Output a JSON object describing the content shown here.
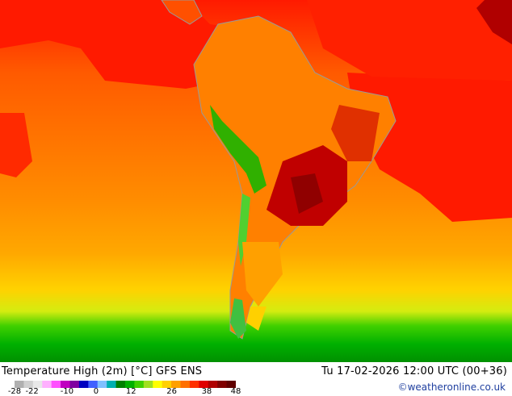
{
  "map": {
    "title": "Temperature High (2m) [°C] GFS ENS",
    "datetime": "Tu 17-02-2026 12:00 UTC (00+36)",
    "credit": "©weatheronline.co.uk"
  },
  "legend": {
    "ticks": [
      {
        "label": "-28",
        "value": -28
      },
      {
        "label": "-22",
        "value": -22
      },
      {
        "label": "-10",
        "value": -10
      },
      {
        "label": "0",
        "value": 0
      },
      {
        "label": "12",
        "value": 12
      },
      {
        "label": "26",
        "value": 26
      },
      {
        "label": "38",
        "value": 38
      },
      {
        "label": "48",
        "value": 48
      }
    ],
    "colors": [
      "#b0b0b0",
      "#d0d0d0",
      "#e8e8e8",
      "#ffb0ff",
      "#ff50ff",
      "#c000c0",
      "#8000a0",
      "#0000c0",
      "#4060ff",
      "#80c0ff",
      "#00b0b0",
      "#008000",
      "#00b000",
      "#40d000",
      "#a0e020",
      "#ffff00",
      "#ffd000",
      "#ffa000",
      "#ff7000",
      "#ff3000",
      "#e00000",
      "#b00000",
      "#800000",
      "#600000"
    ]
  }
}
